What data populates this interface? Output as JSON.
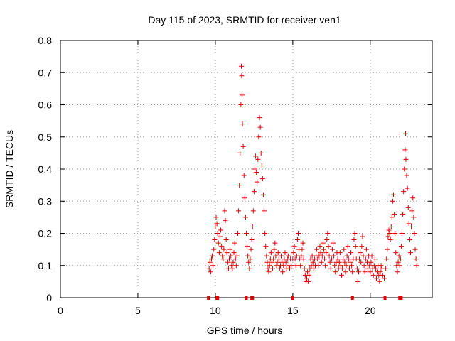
{
  "chart_data": {
    "type": "scatter",
    "title": "Day 115 of 2023, SRMTID for receiver ven1",
    "xlabel": "GPS time / hours",
    "ylabel": "SRMTID / TECUs",
    "xlim": [
      0,
      24
    ],
    "ylim": [
      0,
      0.8
    ],
    "xticks": [
      0,
      5,
      10,
      15,
      20
    ],
    "yticks": [
      0,
      0.1,
      0.2,
      0.3,
      0.4,
      0.5,
      0.6,
      0.7,
      0.8
    ],
    "xtick_labels": [
      "0",
      "5",
      "10",
      "15",
      "20"
    ],
    "ytick_labels": [
      "0",
      "0.1",
      "0.2",
      "0.3",
      "0.4",
      "0.5",
      "0.6",
      "0.7",
      "0.8"
    ],
    "grid": true,
    "marker": "+",
    "color": "#e00000",
    "series": [
      {
        "name": "SRMTID",
        "points": [
          [
            9.6,
            0.09
          ],
          [
            9.65,
            0.11
          ],
          [
            9.7,
            0.08
          ],
          [
            9.75,
            0.12
          ],
          [
            9.8,
            0.13
          ],
          [
            9.85,
            0.1
          ],
          [
            9.9,
            0.15
          ],
          [
            9.95,
            0.18
          ],
          [
            10.0,
            0.22
          ],
          [
            10.05,
            0.25
          ],
          [
            10.1,
            0.23
          ],
          [
            10.15,
            0.2
          ],
          [
            10.2,
            0.17
          ],
          [
            10.25,
            0.14
          ],
          [
            10.3,
            0.19
          ],
          [
            10.35,
            0.21
          ],
          [
            10.4,
            0.16
          ],
          [
            10.45,
            0.13
          ],
          [
            10.5,
            0.12
          ],
          [
            10.55,
            0.15
          ],
          [
            10.6,
            0.27
          ],
          [
            10.65,
            0.24
          ],
          [
            10.7,
            0.18
          ],
          [
            10.75,
            0.14
          ],
          [
            10.8,
            0.11
          ],
          [
            10.85,
            0.09
          ],
          [
            10.9,
            0.12
          ],
          [
            10.95,
            0.15
          ],
          [
            11.0,
            0.13
          ],
          [
            11.05,
            0.1
          ],
          [
            11.1,
            0.09
          ],
          [
            11.15,
            0.11
          ],
          [
            11.2,
            0.14
          ],
          [
            11.25,
            0.17
          ],
          [
            11.3,
            0.12
          ],
          [
            11.35,
            0.1
          ],
          [
            11.4,
            0.13
          ],
          [
            11.45,
            0.2
          ],
          [
            11.5,
            0.27
          ],
          [
            11.55,
            0.35
          ],
          [
            11.6,
            0.45
          ],
          [
            11.65,
            0.6
          ],
          [
            11.68,
            0.72
          ],
          [
            11.7,
            0.69
          ],
          [
            11.72,
            0.63
          ],
          [
            11.75,
            0.54
          ],
          [
            11.8,
            0.47
          ],
          [
            11.85,
            0.38
          ],
          [
            11.9,
            0.31
          ],
          [
            11.95,
            0.25
          ],
          [
            12.0,
            0.2
          ],
          [
            12.05,
            0.16
          ],
          [
            12.1,
            0.13
          ],
          [
            12.15,
            0.11
          ],
          [
            12.2,
            0.09
          ],
          [
            12.25,
            0.12
          ],
          [
            12.3,
            0.15
          ],
          [
            12.35,
            0.18
          ],
          [
            12.4,
            0.22
          ],
          [
            12.45,
            0.27
          ],
          [
            12.5,
            0.33
          ],
          [
            12.55,
            0.4
          ],
          [
            12.6,
            0.44
          ],
          [
            12.65,
            0.39
          ],
          [
            12.7,
            0.36
          ],
          [
            12.75,
            0.43
          ],
          [
            12.8,
            0.5
          ],
          [
            12.85,
            0.56
          ],
          [
            12.9,
            0.53
          ],
          [
            12.95,
            0.45
          ],
          [
            13.0,
            0.41
          ],
          [
            13.05,
            0.37
          ],
          [
            13.1,
            0.32
          ],
          [
            13.15,
            0.27
          ],
          [
            13.2,
            0.2
          ],
          [
            13.25,
            0.16
          ],
          [
            13.3,
            0.13
          ],
          [
            13.35,
            0.11
          ],
          [
            13.4,
            0.09
          ],
          [
            13.45,
            0.08
          ],
          [
            13.5,
            0.1
          ],
          [
            13.55,
            0.12
          ],
          [
            13.6,
            0.14
          ],
          [
            13.65,
            0.11
          ],
          [
            13.7,
            0.09
          ],
          [
            13.75,
            0.12
          ],
          [
            13.8,
            0.15
          ],
          [
            13.85,
            0.17
          ],
          [
            13.9,
            0.13
          ],
          [
            13.95,
            0.1
          ],
          [
            14.0,
            0.11
          ],
          [
            14.05,
            0.14
          ],
          [
            14.1,
            0.12
          ],
          [
            14.15,
            0.09
          ],
          [
            14.2,
            0.1
          ],
          [
            14.25,
            0.13
          ],
          [
            14.3,
            0.11
          ],
          [
            14.35,
            0.08
          ],
          [
            14.4,
            0.1
          ],
          [
            14.45,
            0.12
          ],
          [
            14.5,
            0.14
          ],
          [
            14.55,
            0.11
          ],
          [
            14.6,
            0.09
          ],
          [
            14.65,
            0.12
          ],
          [
            14.7,
            0.13
          ],
          [
            14.75,
            0.1
          ],
          [
            14.8,
            0.09
          ],
          [
            14.85,
            0.12
          ],
          [
            14.9,
            0.1
          ],
          [
            15.0,
            0.12
          ],
          [
            15.05,
            0.14
          ],
          [
            15.1,
            0.16
          ],
          [
            15.15,
            0.12
          ],
          [
            15.2,
            0.1
          ],
          [
            15.25,
            0.13
          ],
          [
            15.3,
            0.18
          ],
          [
            15.35,
            0.2
          ],
          [
            15.4,
            0.15
          ],
          [
            15.45,
            0.12
          ],
          [
            15.5,
            0.1
          ],
          [
            15.55,
            0.13
          ],
          [
            15.6,
            0.15
          ],
          [
            15.65,
            0.17
          ],
          [
            15.7,
            0.12
          ],
          [
            15.75,
            0.09
          ],
          [
            15.8,
            0.07
          ],
          [
            15.85,
            0.05
          ],
          [
            15.9,
            0.06
          ],
          [
            15.95,
            0.08
          ],
          [
            16.0,
            0.05
          ],
          [
            16.05,
            0.07
          ],
          [
            16.1,
            0.09
          ],
          [
            16.15,
            0.12
          ],
          [
            16.2,
            0.1
          ],
          [
            16.25,
            0.13
          ],
          [
            16.3,
            0.11
          ],
          [
            16.35,
            0.09
          ],
          [
            16.4,
            0.12
          ],
          [
            16.45,
            0.1
          ],
          [
            16.5,
            0.13
          ],
          [
            16.55,
            0.15
          ],
          [
            16.6,
            0.12
          ],
          [
            16.65,
            0.1
          ],
          [
            16.7,
            0.13
          ],
          [
            16.75,
            0.16
          ],
          [
            16.8,
            0.14
          ],
          [
            16.85,
            0.11
          ],
          [
            16.9,
            0.13
          ],
          [
            16.95,
            0.17
          ],
          [
            17.0,
            0.15
          ],
          [
            17.05,
            0.12
          ],
          [
            17.1,
            0.1
          ],
          [
            17.15,
            0.14
          ],
          [
            17.2,
            0.18
          ],
          [
            17.25,
            0.2
          ],
          [
            17.3,
            0.16
          ],
          [
            17.35,
            0.13
          ],
          [
            17.4,
            0.11
          ],
          [
            17.45,
            0.09
          ],
          [
            17.5,
            0.12
          ],
          [
            17.55,
            0.15
          ],
          [
            17.6,
            0.17
          ],
          [
            17.65,
            0.13
          ],
          [
            17.7,
            0.1
          ],
          [
            17.75,
            0.08
          ],
          [
            17.8,
            0.11
          ],
          [
            17.85,
            0.14
          ],
          [
            17.9,
            0.12
          ],
          [
            17.95,
            0.09
          ],
          [
            18.0,
            0.11
          ],
          [
            18.05,
            0.14
          ],
          [
            18.1,
            0.1
          ],
          [
            18.15,
            0.07
          ],
          [
            18.2,
            0.09
          ],
          [
            18.25,
            0.12
          ],
          [
            18.3,
            0.15
          ],
          [
            18.35,
            0.11
          ],
          [
            18.4,
            0.08
          ],
          [
            18.45,
            0.1
          ],
          [
            18.5,
            0.13
          ],
          [
            18.55,
            0.16
          ],
          [
            18.6,
            0.12
          ],
          [
            18.65,
            0.09
          ],
          [
            18.7,
            0.11
          ],
          [
            18.75,
            0.14
          ],
          [
            18.8,
            0.1
          ],
          [
            18.85,
            0.08
          ],
          [
            18.9,
            0.12
          ],
          [
            18.95,
            0.18
          ],
          [
            19.0,
            0.2
          ],
          [
            19.05,
            0.16
          ],
          [
            19.1,
            0.12
          ],
          [
            19.15,
            0.09
          ],
          [
            19.2,
            0.05
          ],
          [
            19.25,
            0.08
          ],
          [
            19.3,
            0.12
          ],
          [
            19.35,
            0.14
          ],
          [
            19.4,
            0.11
          ],
          [
            19.45,
            0.16
          ],
          [
            19.5,
            0.19
          ],
          [
            19.55,
            0.13
          ],
          [
            19.6,
            0.1
          ],
          [
            19.65,
            0.08
          ],
          [
            19.7,
            0.12
          ],
          [
            19.75,
            0.15
          ],
          [
            19.8,
            0.11
          ],
          [
            19.85,
            0.09
          ],
          [
            19.9,
            0.13
          ],
          [
            19.95,
            0.1
          ],
          [
            20.0,
            0.08
          ],
          [
            20.05,
            0.11
          ],
          [
            20.1,
            0.13
          ],
          [
            20.15,
            0.09
          ],
          [
            20.2,
            0.07
          ],
          [
            20.25,
            0.1
          ],
          [
            20.3,
            0.12
          ],
          [
            20.35,
            0.09
          ],
          [
            20.4,
            0.06
          ],
          [
            20.45,
            0.08
          ],
          [
            20.5,
            0.1
          ],
          [
            20.55,
            0.07
          ],
          [
            20.6,
            0.05
          ],
          [
            20.65,
            0.08
          ],
          [
            20.7,
            0.1
          ],
          [
            20.75,
            0.09
          ],
          [
            20.8,
            0.07
          ],
          [
            20.9,
            0.06
          ],
          [
            21.0,
            0.09
          ],
          [
            21.05,
            0.12
          ],
          [
            21.1,
            0.15
          ],
          [
            21.15,
            0.19
          ],
          [
            21.2,
            0.21
          ],
          [
            21.25,
            0.2
          ],
          [
            21.3,
            0.18
          ],
          [
            21.35,
            0.22
          ],
          [
            21.4,
            0.25
          ],
          [
            21.45,
            0.3
          ],
          [
            21.5,
            0.32
          ],
          [
            21.55,
            0.26
          ],
          [
            21.6,
            0.2
          ],
          [
            21.65,
            0.14
          ],
          [
            21.7,
            0.1
          ],
          [
            21.75,
            0.08
          ],
          [
            21.8,
            0.11
          ],
          [
            21.85,
            0.13
          ],
          [
            21.9,
            0.1
          ],
          [
            21.95,
            0.12
          ],
          [
            22.0,
            0.16
          ],
          [
            22.05,
            0.2
          ],
          [
            22.1,
            0.26
          ],
          [
            22.15,
            0.33
          ],
          [
            22.2,
            0.4
          ],
          [
            22.25,
            0.46
          ],
          [
            22.28,
            0.51
          ],
          [
            22.3,
            0.43
          ],
          [
            22.35,
            0.38
          ],
          [
            22.4,
            0.34
          ],
          [
            22.45,
            0.28
          ],
          [
            22.5,
            0.23
          ],
          [
            22.55,
            0.18
          ],
          [
            22.6,
            0.14
          ],
          [
            22.65,
            0.22
          ],
          [
            22.7,
            0.27
          ],
          [
            22.75,
            0.31
          ],
          [
            22.8,
            0.25
          ],
          [
            22.85,
            0.2
          ],
          [
            22.9,
            0.15
          ],
          [
            22.95,
            0.12
          ],
          [
            23.0,
            0.1
          ]
        ]
      }
    ],
    "zero_markers_x": [
      9.55,
      10.1,
      10.15,
      12.0,
      12.35,
      12.4,
      15.0,
      18.85,
      20.95,
      21.9,
      22.0
    ]
  }
}
